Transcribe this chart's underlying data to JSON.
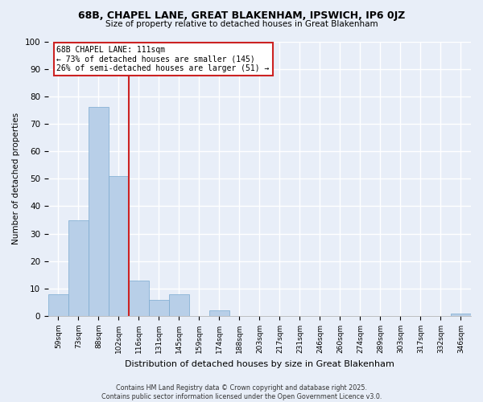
{
  "title": "68B, CHAPEL LANE, GREAT BLAKENHAM, IPSWICH, IP6 0JZ",
  "subtitle": "Size of property relative to detached houses in Great Blakenham",
  "xlabel": "Distribution of detached houses by size in Great Blakenham",
  "ylabel": "Number of detached properties",
  "bin_labels": [
    "59sqm",
    "73sqm",
    "88sqm",
    "102sqm",
    "116sqm",
    "131sqm",
    "145sqm",
    "159sqm",
    "174sqm",
    "188sqm",
    "203sqm",
    "217sqm",
    "231sqm",
    "246sqm",
    "260sqm",
    "274sqm",
    "289sqm",
    "303sqm",
    "317sqm",
    "332sqm",
    "346sqm"
  ],
  "bar_values": [
    8,
    35,
    76,
    51,
    13,
    6,
    8,
    0,
    2,
    0,
    0,
    0,
    0,
    0,
    0,
    0,
    0,
    0,
    0,
    0,
    1
  ],
  "bar_color": "#b8cfe8",
  "bar_edge_color": "#7aaad0",
  "vline_color": "#cc2222",
  "annotation_text_line1": "68B CHAPEL LANE: 111sqm",
  "annotation_text_line2": "← 73% of detached houses are smaller (145)",
  "annotation_text_line3": "26% of semi-detached houses are larger (51) →",
  "annotation_box_color": "#ffffff",
  "annotation_box_edge": "#cc2222",
  "ylim": [
    0,
    100
  ],
  "yticks": [
    0,
    10,
    20,
    30,
    40,
    50,
    60,
    70,
    80,
    90,
    100
  ],
  "background_color": "#e8eef8",
  "plot_background": "#e8eef8",
  "footer_line1": "Contains HM Land Registry data © Crown copyright and database right 2025.",
  "footer_line2": "Contains public sector information licensed under the Open Government Licence v3.0."
}
